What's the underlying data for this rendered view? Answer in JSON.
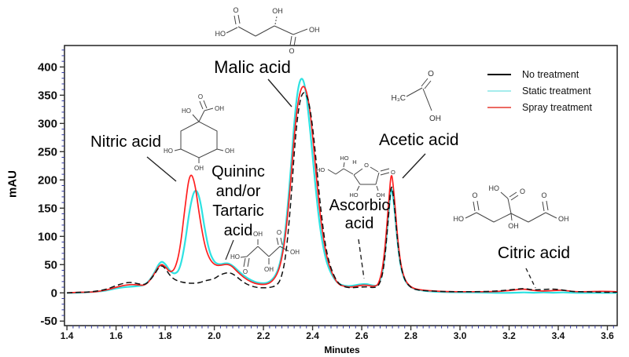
{
  "figure": {
    "y_axis_label": "mAU",
    "x_axis_label": "Minutes",
    "y_ticks": [
      "400",
      "350",
      "300",
      "250",
      "200",
      "150",
      "100",
      "50",
      "0",
      "-50"
    ],
    "x_ticks": [
      "1.4",
      "1.6",
      "1.8",
      "2.0",
      "2.2",
      "2.4",
      "2.6",
      "2.8",
      "3.0",
      "3.2",
      "3.4",
      "3.6"
    ]
  },
  "legend": {
    "items": [
      {
        "label": "No treatment",
        "color": "#000000"
      },
      {
        "label": "Static treatment",
        "color": "#a5ecec"
      },
      {
        "label": "Spray treatment",
        "color": "#ec6a63"
      }
    ]
  },
  "annotations": {
    "nitric": "Nitric acid",
    "malic": "Malic acid",
    "quinic_lines": [
      "Quininc",
      "and/or",
      "Tartaric",
      "acid"
    ],
    "acetic": "Acetic acid",
    "ascorbic_lines": [
      "Ascorbic",
      "acid"
    ],
    "citric": "Citric acid"
  },
  "structures": {
    "malic": {
      "ho": "HO",
      "o_left": "O",
      "oh_top": "OH",
      "o_bottom": "O",
      "oh_right": "OH"
    },
    "quinic": {
      "o_top": "O",
      "ho_top": "HO",
      "oh_top": "OH",
      "ho_left": "HO",
      "oh_right": "OH",
      "oh_bottom": "OH"
    },
    "tartaric": {
      "ho_left": "HO",
      "o_bottom": "O",
      "oh_top": "OH",
      "o_top": "O",
      "oh_bottom": "OH",
      "oh_right": "OH"
    },
    "acetic": {
      "h3c": "H₃C",
      "o": "O",
      "oh": "OH"
    },
    "ascorbic": {
      "ho_left": "HO",
      "ho_top": "HO",
      "h": "H",
      "o_ring": "O",
      "o_right": "O",
      "ho_bottom": "HO",
      "oh_bottom": "OH"
    },
    "citric": {
      "ho_top": "HO",
      "o_top": "O",
      "o_left": "O",
      "ho_left": "HO",
      "o_right": "O",
      "oh_right": "OH",
      "oh_center": "OH"
    }
  },
  "chart_data": {
    "type": "line",
    "xlabel": "Minutes",
    "ylabel": "mAU",
    "xlim": [
      1.39,
      3.64
    ],
    "ylim": [
      -58,
      438
    ],
    "x_major_ticks": [
      1.4,
      1.6,
      1.8,
      2.0,
      2.2,
      2.4,
      2.6,
      2.8,
      3.0,
      3.2,
      3.4,
      3.6
    ],
    "y_major_ticks": [
      400,
      350,
      300,
      250,
      200,
      150,
      100,
      50,
      0,
      -50
    ],
    "x_minor_step": 0.025,
    "y_minor_step": 10,
    "grid": false,
    "legend_position": "top-right-inside",
    "peak_assignments": [
      {
        "compound": "Nitric acid",
        "rt_min": 1.9
      },
      {
        "compound": "Quininc and/or Tartaric acid",
        "rt_min": 2.05
      },
      {
        "compound": "Malic acid",
        "rt_min": 2.36
      },
      {
        "compound": "Ascorbic acid",
        "rt_min": 2.6
      },
      {
        "compound": "Acetic acid",
        "rt_min": 2.72
      },
      {
        "compound": "Citric acid",
        "rt_min": 3.27
      }
    ],
    "series": [
      {
        "name": "No treatment",
        "color": "#101010",
        "dash": "7 4",
        "stroke_width": 1.5,
        "points": [
          [
            1.4,
            0
          ],
          [
            1.44,
            1
          ],
          [
            1.48,
            1
          ],
          [
            1.52,
            3
          ],
          [
            1.56,
            6
          ],
          [
            1.6,
            13
          ],
          [
            1.63,
            17
          ],
          [
            1.66,
            19
          ],
          [
            1.69,
            16
          ],
          [
            1.72,
            14
          ],
          [
            1.75,
            28
          ],
          [
            1.78,
            50
          ],
          [
            1.8,
            44
          ],
          [
            1.82,
            30
          ],
          [
            1.84,
            23
          ],
          [
            1.86,
            20
          ],
          [
            1.88,
            18
          ],
          [
            1.9,
            17
          ],
          [
            1.92,
            17
          ],
          [
            1.94,
            18
          ],
          [
            1.96,
            21
          ],
          [
            1.98,
            23
          ],
          [
            2.0,
            25
          ],
          [
            2.02,
            31
          ],
          [
            2.05,
            36
          ],
          [
            2.07,
            35
          ],
          [
            2.09,
            29
          ],
          [
            2.12,
            18
          ],
          [
            2.15,
            12
          ],
          [
            2.18,
            9
          ],
          [
            2.22,
            9
          ],
          [
            2.25,
            12
          ],
          [
            2.27,
            22
          ],
          [
            2.29,
            60
          ],
          [
            2.31,
            150
          ],
          [
            2.33,
            280
          ],
          [
            2.35,
            348
          ],
          [
            2.37,
            358
          ],
          [
            2.39,
            330
          ],
          [
            2.41,
            255
          ],
          [
            2.43,
            160
          ],
          [
            2.45,
            88
          ],
          [
            2.47,
            48
          ],
          [
            2.5,
            18
          ],
          [
            2.53,
            10
          ],
          [
            2.56,
            9
          ],
          [
            2.59,
            10
          ],
          [
            2.62,
            11
          ],
          [
            2.65,
            9
          ],
          [
            2.67,
            12
          ],
          [
            2.69,
            40
          ],
          [
            2.71,
            140
          ],
          [
            2.72,
            196
          ],
          [
            2.73,
            170
          ],
          [
            2.75,
            70
          ],
          [
            2.77,
            25
          ],
          [
            2.8,
            8
          ],
          [
            2.84,
            4
          ],
          [
            2.9,
            3
          ],
          [
            2.96,
            2
          ],
          [
            3.05,
            2
          ],
          [
            3.15,
            3
          ],
          [
            3.22,
            6
          ],
          [
            3.26,
            8
          ],
          [
            3.3,
            5
          ],
          [
            3.34,
            6
          ],
          [
            3.38,
            7
          ],
          [
            3.42,
            5
          ],
          [
            3.46,
            2
          ],
          [
            3.52,
            2
          ],
          [
            3.58,
            1
          ],
          [
            3.64,
            1
          ]
        ]
      },
      {
        "name": "Static treatment",
        "color": "#2ee2e2",
        "dash": null,
        "stroke_width": 2.2,
        "points": [
          [
            1.4,
            0
          ],
          [
            1.44,
            0
          ],
          [
            1.48,
            1
          ],
          [
            1.52,
            2
          ],
          [
            1.56,
            4
          ],
          [
            1.6,
            8
          ],
          [
            1.63,
            10
          ],
          [
            1.66,
            11
          ],
          [
            1.69,
            12
          ],
          [
            1.72,
            14
          ],
          [
            1.75,
            30
          ],
          [
            1.78,
            57
          ],
          [
            1.8,
            52
          ],
          [
            1.82,
            38
          ],
          [
            1.84,
            33
          ],
          [
            1.86,
            42
          ],
          [
            1.88,
            85
          ],
          [
            1.9,
            150
          ],
          [
            1.92,
            186
          ],
          [
            1.94,
            172
          ],
          [
            1.96,
            115
          ],
          [
            1.98,
            72
          ],
          [
            2.0,
            54
          ],
          [
            2.02,
            50
          ],
          [
            2.05,
            53
          ],
          [
            2.07,
            50
          ],
          [
            2.09,
            42
          ],
          [
            2.12,
            30
          ],
          [
            2.15,
            22
          ],
          [
            2.18,
            17
          ],
          [
            2.22,
            17
          ],
          [
            2.25,
            30
          ],
          [
            2.27,
            55
          ],
          [
            2.29,
            110
          ],
          [
            2.31,
            210
          ],
          [
            2.33,
            330
          ],
          [
            2.35,
            385
          ],
          [
            2.37,
            370
          ],
          [
            2.39,
            290
          ],
          [
            2.41,
            195
          ],
          [
            2.43,
            115
          ],
          [
            2.45,
            65
          ],
          [
            2.47,
            38
          ],
          [
            2.5,
            17
          ],
          [
            2.53,
            12
          ],
          [
            2.56,
            12
          ],
          [
            2.59,
            15
          ],
          [
            2.62,
            16
          ],
          [
            2.65,
            12
          ],
          [
            2.67,
            14
          ],
          [
            2.69,
            45
          ],
          [
            2.71,
            145
          ],
          [
            2.72,
            192
          ],
          [
            2.73,
            165
          ],
          [
            2.75,
            68
          ],
          [
            2.77,
            24
          ],
          [
            2.8,
            9
          ],
          [
            2.84,
            4
          ],
          [
            2.9,
            2
          ],
          [
            2.96,
            1
          ],
          [
            3.05,
            1
          ],
          [
            3.15,
            0
          ],
          [
            3.22,
            0
          ],
          [
            3.26,
            1
          ],
          [
            3.3,
            0
          ],
          [
            3.34,
            1
          ],
          [
            3.38,
            0
          ],
          [
            3.42,
            1
          ],
          [
            3.46,
            0
          ],
          [
            3.52,
            0
          ],
          [
            3.58,
            0
          ],
          [
            3.64,
            0
          ]
        ]
      },
      {
        "name": "Spray treatment",
        "color": "#ff1f1f",
        "dash": null,
        "stroke_width": 1.7,
        "points": [
          [
            1.4,
            0
          ],
          [
            1.44,
            1
          ],
          [
            1.48,
            1
          ],
          [
            1.52,
            2
          ],
          [
            1.56,
            5
          ],
          [
            1.6,
            10
          ],
          [
            1.63,
            13
          ],
          [
            1.66,
            15
          ],
          [
            1.69,
            14
          ],
          [
            1.72,
            13
          ],
          [
            1.75,
            29
          ],
          [
            1.78,
            52
          ],
          [
            1.8,
            47
          ],
          [
            1.82,
            36
          ],
          [
            1.84,
            42
          ],
          [
            1.86,
            75
          ],
          [
            1.88,
            150
          ],
          [
            1.9,
            215
          ],
          [
            1.92,
            198
          ],
          [
            1.94,
            135
          ],
          [
            1.96,
            85
          ],
          [
            1.98,
            60
          ],
          [
            2.0,
            50
          ],
          [
            2.02,
            48
          ],
          [
            2.05,
            51
          ],
          [
            2.07,
            48
          ],
          [
            2.09,
            39
          ],
          [
            2.12,
            27
          ],
          [
            2.15,
            19
          ],
          [
            2.18,
            15
          ],
          [
            2.22,
            15
          ],
          [
            2.25,
            27
          ],
          [
            2.27,
            50
          ],
          [
            2.29,
            100
          ],
          [
            2.31,
            190
          ],
          [
            2.33,
            305
          ],
          [
            2.35,
            362
          ],
          [
            2.37,
            368
          ],
          [
            2.39,
            325
          ],
          [
            2.41,
            230
          ],
          [
            2.43,
            140
          ],
          [
            2.45,
            78
          ],
          [
            2.47,
            44
          ],
          [
            2.5,
            16
          ],
          [
            2.53,
            11
          ],
          [
            2.56,
            10
          ],
          [
            2.59,
            13
          ],
          [
            2.62,
            14
          ],
          [
            2.65,
            11
          ],
          [
            2.67,
            15
          ],
          [
            2.69,
            55
          ],
          [
            2.71,
            160
          ],
          [
            2.72,
            218
          ],
          [
            2.73,
            185
          ],
          [
            2.75,
            75
          ],
          [
            2.77,
            26
          ],
          [
            2.8,
            9
          ],
          [
            2.84,
            5
          ],
          [
            2.9,
            3
          ],
          [
            2.96,
            2
          ],
          [
            3.05,
            2
          ],
          [
            3.15,
            2
          ],
          [
            3.22,
            5
          ],
          [
            3.26,
            7
          ],
          [
            3.3,
            4
          ],
          [
            3.34,
            3
          ],
          [
            3.38,
            4
          ],
          [
            3.42,
            5
          ],
          [
            3.46,
            2
          ],
          [
            3.52,
            2
          ],
          [
            3.58,
            3
          ],
          [
            3.64,
            2
          ]
        ]
      }
    ]
  }
}
